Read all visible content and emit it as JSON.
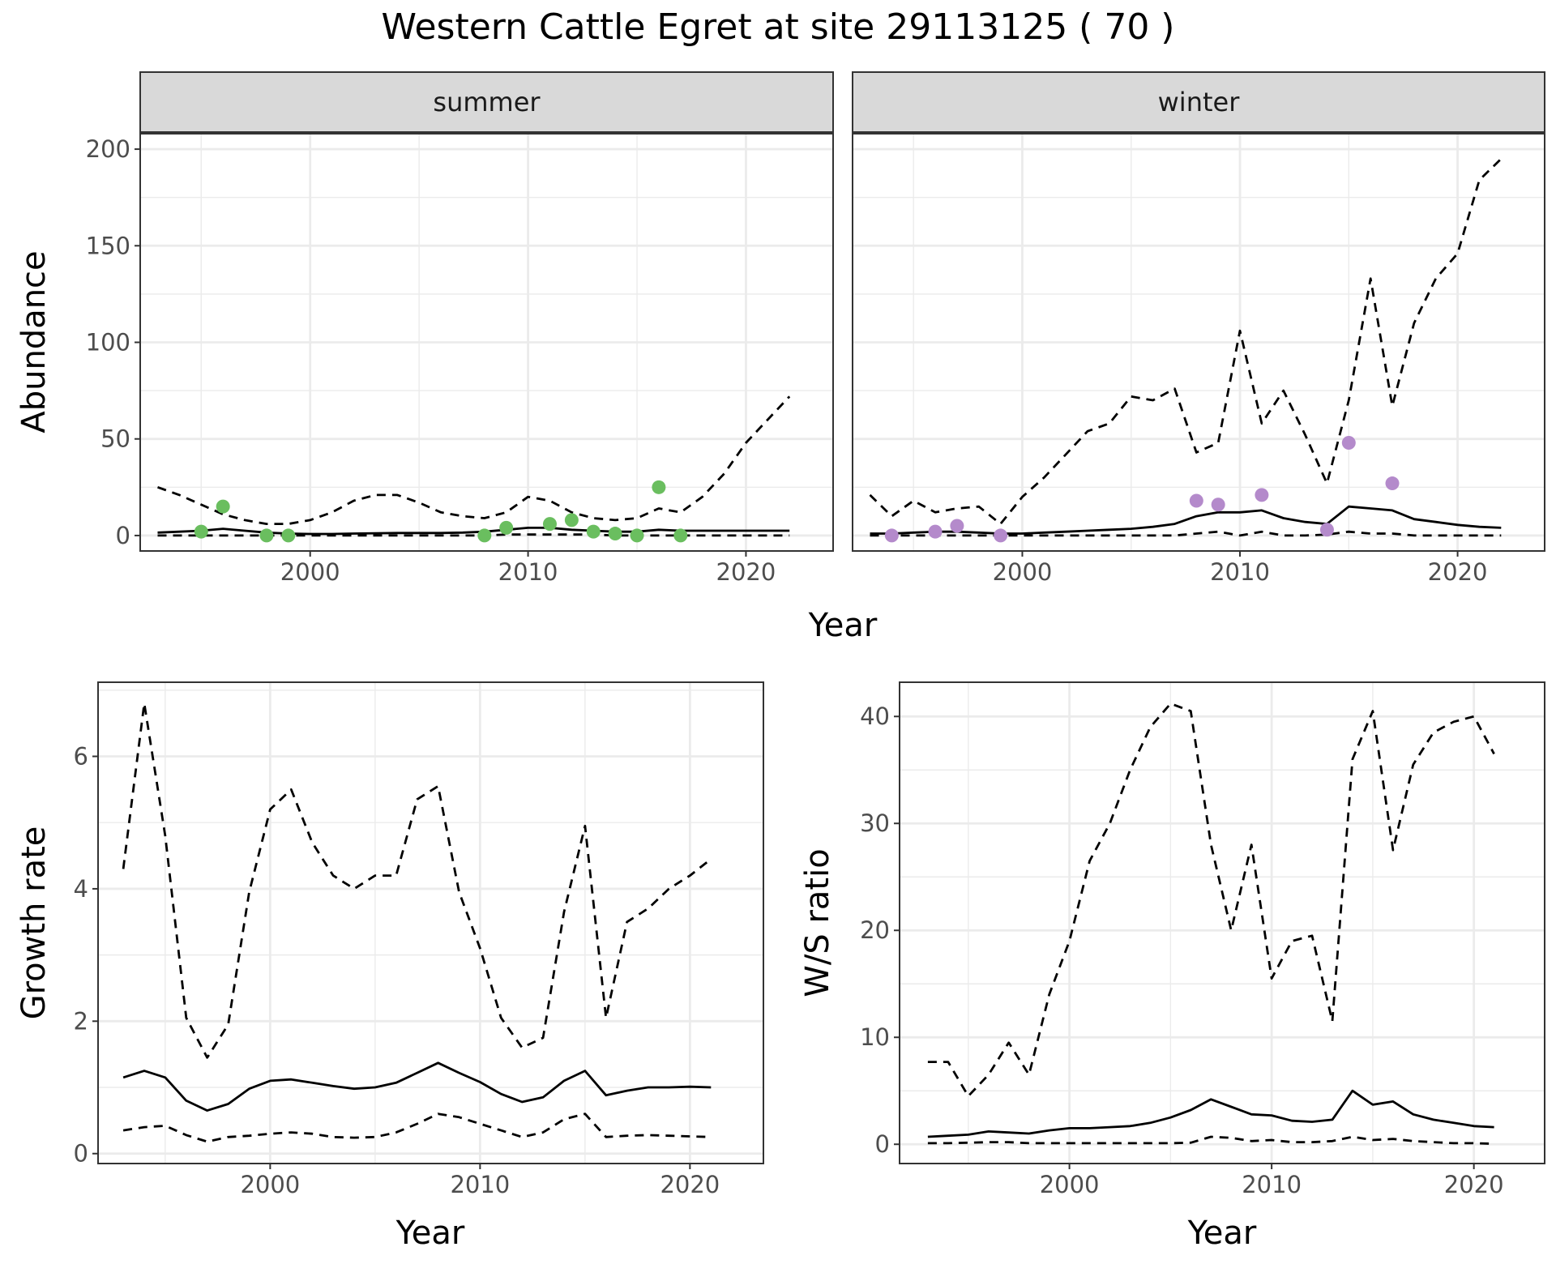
{
  "figure": {
    "title": "Western Cattle Egret at site 29113125 ( 70 )"
  },
  "colors": {
    "summer_points": "#6ABE5F",
    "winter_points": "#B48ACB",
    "lines": "#000000",
    "grid": "#EBEBEB",
    "strip_fill": "#D9D9D9"
  },
  "chart_data": [
    {
      "id": "abundance",
      "type": "line",
      "facet_by": "season",
      "panels": [
        "summer",
        "winter"
      ],
      "xlabel": "Year",
      "ylabel": "Abundance",
      "xlim": [
        1992.2,
        2024
      ],
      "ylim": [
        -8,
        208
      ],
      "xticks": [
        2000,
        2010,
        2020
      ],
      "yticks": [
        0,
        50,
        100,
        150,
        200
      ],
      "grid": true,
      "legend": "none",
      "summer": {
        "estimate": {
          "x": [
            1993,
            1994,
            1995,
            1996,
            1997,
            1998,
            1999,
            2000,
            2001,
            2002,
            2003,
            2004,
            2005,
            2006,
            2007,
            2008,
            2009,
            2010,
            2011,
            2012,
            2013,
            2014,
            2015,
            2016,
            2017,
            2018,
            2019,
            2020,
            2021,
            2022
          ],
          "y": [
            1.5,
            2,
            2.5,
            3.5,
            2.5,
            1.5,
            1,
            0.8,
            0.8,
            1,
            1.2,
            1.3,
            1.3,
            1.3,
            1.5,
            2,
            3,
            4,
            4,
            3,
            2.5,
            2,
            2,
            3,
            2.5,
            2.5,
            2.5,
            2.5,
            2.5,
            2.5
          ]
        },
        "upper": {
          "x": [
            1993,
            1994,
            1995,
            1996,
            1997,
            1998,
            1999,
            2000,
            2001,
            2002,
            2003,
            2004,
            2005,
            2006,
            2007,
            2008,
            2009,
            2010,
            2011,
            2012,
            2013,
            2014,
            2015,
            2016,
            2017,
            2018,
            2019,
            2020,
            2021,
            2022
          ],
          "y": [
            25,
            21,
            16,
            11,
            8,
            6,
            6,
            8,
            12,
            18,
            21,
            21,
            17,
            12,
            10,
            9,
            12,
            20,
            18,
            12,
            9,
            8,
            9,
            14,
            12,
            20,
            32,
            48,
            60,
            72
          ]
        },
        "lower": {
          "x": [
            1993,
            1994,
            1995,
            1996,
            1997,
            1998,
            1999,
            2000,
            2001,
            2002,
            2003,
            2004,
            2005,
            2006,
            2007,
            2008,
            2009,
            2010,
            2011,
            2012,
            2013,
            2014,
            2015,
            2016,
            2017,
            2018,
            2019,
            2020,
            2021,
            2022
          ],
          "y": [
            0,
            0,
            0,
            0,
            0,
            0,
            0,
            0,
            0,
            0,
            0,
            0,
            0,
            0,
            0,
            0,
            0.5,
            0.5,
            0.5,
            0.5,
            0.5,
            0,
            0,
            0,
            0,
            0,
            0,
            0,
            0,
            0
          ]
        },
        "observed": {
          "x": [
            1995,
            1996,
            1998,
            1999,
            2008,
            2009,
            2011,
            2012,
            2013,
            2014,
            2015,
            2016,
            2017
          ],
          "y": [
            2,
            15,
            0,
            0,
            0,
            4,
            6,
            8,
            2,
            1,
            0,
            25,
            0
          ]
        }
      },
      "winter": {
        "estimate": {
          "x": [
            1993,
            1994,
            1995,
            1996,
            1997,
            1998,
            1999,
            2000,
            2001,
            2002,
            2003,
            2004,
            2005,
            2006,
            2007,
            2008,
            2009,
            2010,
            2011,
            2012,
            2013,
            2014,
            2015,
            2016,
            2017,
            2018,
            2019,
            2020,
            2021,
            2022
          ],
          "y": [
            1,
            1,
            1.5,
            2,
            2,
            1.5,
            1,
            1,
            1.5,
            2,
            2.5,
            3,
            3.5,
            4.5,
            6,
            10,
            12,
            12,
            13,
            9,
            7,
            6,
            15,
            14,
            13,
            8.5,
            7,
            5.5,
            4.5,
            4
          ]
        },
        "upper": {
          "x": [
            1993,
            1994,
            1995,
            1996,
            1997,
            1998,
            1999,
            2000,
            2001,
            2002,
            2003,
            2004,
            2005,
            2006,
            2007,
            2008,
            2009,
            2010,
            2011,
            2012,
            2013,
            2014,
            2015,
            2016,
            2017,
            2018,
            2019,
            2020,
            2021,
            2022
          ],
          "y": [
            21,
            10,
            18,
            12,
            14,
            15,
            6,
            20,
            30,
            42,
            54,
            58,
            72,
            70,
            76,
            43,
            48,
            106,
            58,
            75,
            52,
            27,
            70,
            133,
            67,
            110,
            133,
            146,
            184,
            195
          ]
        },
        "lower": {
          "x": [
            1993,
            1994,
            1995,
            1996,
            1997,
            1998,
            1999,
            2000,
            2001,
            2002,
            2003,
            2004,
            2005,
            2006,
            2007,
            2008,
            2009,
            2010,
            2011,
            2012,
            2013,
            2014,
            2015,
            2016,
            2017,
            2018,
            2019,
            2020,
            2021,
            2022
          ],
          "y": [
            0,
            0,
            0,
            0,
            0,
            0,
            0,
            0,
            0,
            0,
            0,
            0,
            0,
            0,
            0,
            1,
            2,
            0,
            2,
            0,
            0,
            0.5,
            2,
            1,
            1,
            0,
            0,
            0,
            0,
            0
          ]
        },
        "observed": {
          "x": [
            1994,
            1996,
            1997,
            1999,
            2008,
            2009,
            2011,
            2014,
            2015,
            2017
          ],
          "y": [
            0,
            2,
            5,
            0,
            18,
            16,
            21,
            3,
            48,
            27
          ]
        }
      }
    },
    {
      "id": "growth",
      "type": "line",
      "xlabel": "Year",
      "ylabel": "Growth rate",
      "xlim": [
        1991.8,
        2023.5
      ],
      "ylim": [
        -0.15,
        7.12
      ],
      "xticks": [
        2000,
        2010,
        2020
      ],
      "yticks": [
        0,
        2,
        4,
        6
      ],
      "grid": true,
      "legend": "none",
      "series": [
        {
          "role": "estimate",
          "style": "solid",
          "x": [
            1993,
            1994,
            1995,
            1996,
            1997,
            1998,
            1999,
            2000,
            2001,
            2002,
            2003,
            2004,
            2005,
            2006,
            2007,
            2008,
            2009,
            2010,
            2011,
            2012,
            2013,
            2014,
            2015,
            2016,
            2017,
            2018,
            2019,
            2020,
            2021
          ],
          "y": [
            1.15,
            1.25,
            1.15,
            0.8,
            0.65,
            0.75,
            0.98,
            1.1,
            1.12,
            1.07,
            1.02,
            0.98,
            1.0,
            1.07,
            1.22,
            1.37,
            1.22,
            1.08,
            0.9,
            0.78,
            0.85,
            1.1,
            1.25,
            0.88,
            0.95,
            1.0,
            1.0,
            1.01,
            1.0
          ]
        },
        {
          "role": "upper",
          "style": "dashed",
          "x": [
            1993,
            1994,
            1995,
            1996,
            1997,
            1998,
            1999,
            2000,
            2001,
            2002,
            2003,
            2004,
            2005,
            2006,
            2007,
            2008,
            2009,
            2010,
            2011,
            2012,
            2013,
            2014,
            2015,
            2016,
            2017,
            2018,
            2019,
            2020,
            2021
          ],
          "y": [
            4.3,
            6.8,
            4.8,
            2.05,
            1.45,
            1.95,
            3.95,
            5.2,
            5.5,
            4.7,
            4.2,
            4.0,
            4.2,
            4.2,
            5.35,
            5.55,
            3.95,
            3.1,
            2.05,
            1.6,
            1.75,
            3.65,
            4.95,
            2.05,
            3.5,
            3.7,
            4.0,
            4.2,
            4.45
          ]
        },
        {
          "role": "lower",
          "style": "dashed",
          "x": [
            1993,
            1994,
            1995,
            1996,
            1997,
            1998,
            1999,
            2000,
            2001,
            2002,
            2003,
            2004,
            2005,
            2006,
            2007,
            2008,
            2009,
            2010,
            2011,
            2012,
            2013,
            2014,
            2015,
            2016,
            2017,
            2018,
            2019,
            2020,
            2021
          ],
          "y": [
            0.35,
            0.4,
            0.42,
            0.28,
            0.18,
            0.25,
            0.27,
            0.3,
            0.32,
            0.3,
            0.25,
            0.24,
            0.25,
            0.32,
            0.45,
            0.6,
            0.55,
            0.45,
            0.35,
            0.25,
            0.32,
            0.52,
            0.6,
            0.25,
            0.27,
            0.28,
            0.27,
            0.26,
            0.25
          ]
        }
      ]
    },
    {
      "id": "ws_ratio",
      "type": "line",
      "xlabel": "Year",
      "ylabel": "W/S ratio",
      "xlim": [
        1991.6,
        2023.5
      ],
      "ylim": [
        -1.8,
        43.2
      ],
      "xticks": [
        2000,
        2010,
        2020
      ],
      "yticks": [
        0,
        10,
        20,
        30,
        40
      ],
      "grid": true,
      "legend": "none",
      "series": [
        {
          "role": "estimate",
          "style": "solid",
          "x": [
            1993,
            1994,
            1995,
            1996,
            1997,
            1998,
            1999,
            2000,
            2001,
            2002,
            2003,
            2004,
            2005,
            2006,
            2007,
            2008,
            2009,
            2010,
            2011,
            2012,
            2013,
            2014,
            2015,
            2016,
            2017,
            2018,
            2019,
            2020,
            2021
          ],
          "y": [
            0.7,
            0.8,
            0.9,
            1.2,
            1.1,
            1.0,
            1.3,
            1.5,
            1.5,
            1.6,
            1.7,
            2.0,
            2.5,
            3.2,
            4.2,
            3.5,
            2.8,
            2.7,
            2.2,
            2.1,
            2.3,
            5.0,
            3.7,
            4.0,
            2.8,
            2.3,
            2.0,
            1.7,
            1.6
          ]
        },
        {
          "role": "upper",
          "style": "dashed",
          "x": [
            1993,
            1994,
            1995,
            1996,
            1997,
            1998,
            1999,
            2000,
            2001,
            2002,
            2003,
            2004,
            2005,
            2006,
            2007,
            2008,
            2009,
            2010,
            2011,
            2012,
            2013,
            2014,
            2015,
            2016,
            2017,
            2018,
            2019,
            2020,
            2021
          ],
          "y": [
            7.7,
            7.7,
            4.5,
            6.5,
            9.5,
            6.5,
            14,
            19,
            26.5,
            30,
            35,
            39,
            41.2,
            40.5,
            28,
            20,
            28,
            15.5,
            19,
            19.5,
            11.5,
            36,
            40.5,
            27.5,
            35.5,
            38.5,
            39.5,
            40,
            36.5
          ]
        },
        {
          "role": "lower",
          "style": "dashed",
          "x": [
            1993,
            1994,
            1995,
            1996,
            1997,
            1998,
            1999,
            2000,
            2001,
            2002,
            2003,
            2004,
            2005,
            2006,
            2007,
            2008,
            2009,
            2010,
            2011,
            2012,
            2013,
            2014,
            2015,
            2016,
            2017,
            2018,
            2019,
            2020,
            2021
          ],
          "y": [
            0.1,
            0.1,
            0.15,
            0.2,
            0.2,
            0.1,
            0.1,
            0.1,
            0.1,
            0.1,
            0.1,
            0.1,
            0.1,
            0.15,
            0.7,
            0.6,
            0.3,
            0.4,
            0.2,
            0.2,
            0.3,
            0.7,
            0.4,
            0.5,
            0.3,
            0.2,
            0.1,
            0.1,
            0.05
          ]
        }
      ]
    }
  ]
}
